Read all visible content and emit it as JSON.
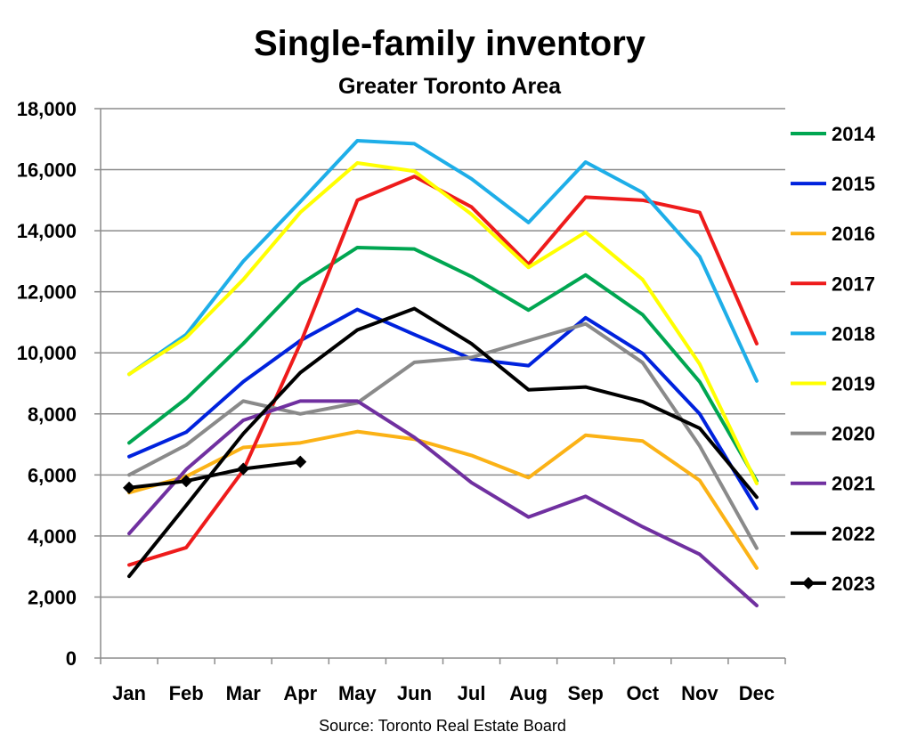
{
  "chart_data": {
    "type": "line",
    "title": "Single-family inventory",
    "subtitle": "Greater Toronto Area",
    "source": "Source: Toronto Real Estate Board",
    "xlabel": "",
    "ylabel": "",
    "categories": [
      "Jan",
      "Feb",
      "Mar",
      "Apr",
      "May",
      "Jun",
      "Jul",
      "Aug",
      "Sep",
      "Oct",
      "Nov",
      "Dec"
    ],
    "ylim": [
      0,
      18000
    ],
    "yticks": [
      0,
      2000,
      4000,
      6000,
      8000,
      10000,
      12000,
      14000,
      16000,
      18000
    ],
    "ytick_labels": [
      "0",
      "2,000",
      "4,000",
      "6,000",
      "8,000",
      "10,000",
      "12,000",
      "14,000",
      "16,000",
      "18,000"
    ],
    "grid": "horizontal",
    "legend_position": "right",
    "series": [
      {
        "name": "2014",
        "color": "#00a651",
        "marker": "none",
        "values": [
          7050,
          8500,
          10300,
          12250,
          13450,
          13400,
          12500,
          11400,
          12550,
          11250,
          9050,
          5800
        ]
      },
      {
        "name": "2015",
        "color": "#0022dd",
        "marker": "none",
        "values": [
          6600,
          7400,
          9050,
          10400,
          11420,
          10600,
          9800,
          9580,
          11150,
          9980,
          8000,
          4900
        ]
      },
      {
        "name": "2016",
        "color": "#fbb216",
        "marker": "none",
        "values": [
          5420,
          5950,
          6900,
          7050,
          7420,
          7170,
          6640,
          5910,
          7300,
          7110,
          5820,
          2950
        ]
      },
      {
        "name": "2017",
        "color": "#ee1b1b",
        "marker": "none",
        "values": [
          3050,
          3620,
          6150,
          10300,
          15000,
          15780,
          14780,
          12900,
          15100,
          15000,
          14600,
          10300
        ]
      },
      {
        "name": "2018",
        "color": "#1eaee8",
        "marker": "none",
        "values": [
          9300,
          10600,
          13000,
          14950,
          16950,
          16850,
          15700,
          14270,
          16250,
          15250,
          13150,
          9080
        ]
      },
      {
        "name": "2019",
        "color": "#ffff00",
        "marker": "none",
        "values": [
          9300,
          10500,
          12400,
          14600,
          16220,
          15950,
          14540,
          12800,
          13950,
          12400,
          9630,
          5720
        ]
      },
      {
        "name": "2020",
        "color": "#8a8a8a",
        "marker": "none",
        "values": [
          6000,
          6980,
          8420,
          8000,
          8360,
          9690,
          9850,
          10400,
          10950,
          9680,
          6950,
          3600
        ]
      },
      {
        "name": "2021",
        "color": "#7030a0",
        "marker": "none",
        "values": [
          4080,
          6180,
          7790,
          8420,
          8420,
          7230,
          5750,
          4620,
          5300,
          4300,
          3400,
          1720
        ]
      },
      {
        "name": "2022",
        "color": "#000000",
        "marker": "none",
        "values": [
          2680,
          5000,
          7350,
          9350,
          10750,
          11450,
          10300,
          8790,
          8880,
          8400,
          7530,
          5270
        ]
      },
      {
        "name": "2023",
        "color": "#000000",
        "marker": "diamond",
        "values": [
          5580,
          5800,
          6200,
          6430,
          null,
          null,
          null,
          null,
          null,
          null,
          null,
          null
        ]
      }
    ]
  }
}
